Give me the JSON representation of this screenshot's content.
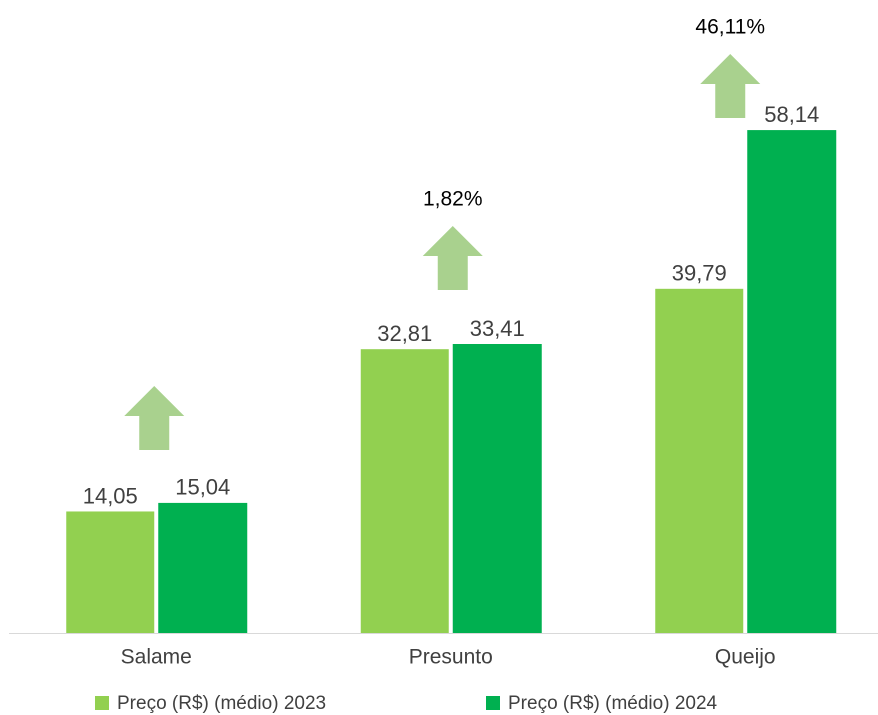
{
  "chart_data": {
    "type": "bar",
    "categories": [
      "Salame",
      "Presunto",
      "Queijo"
    ],
    "series": [
      {
        "name": "Preço (R$) (médio) 2023",
        "color": "#92d050",
        "values": [
          14.05,
          32.81,
          39.79
        ],
        "value_labels": [
          "14,05",
          "32,81",
          "39,79"
        ]
      },
      {
        "name": "Preço (R$) (médio) 2024",
        "color": "#00b050",
        "values": [
          15.04,
          33.41,
          58.14
        ],
        "value_labels": [
          "15,04",
          "33,41",
          "58,14"
        ]
      }
    ],
    "annotations": [
      null,
      "1,82%",
      "46,11%"
    ],
    "ylim": [
      0,
      70
    ]
  }
}
